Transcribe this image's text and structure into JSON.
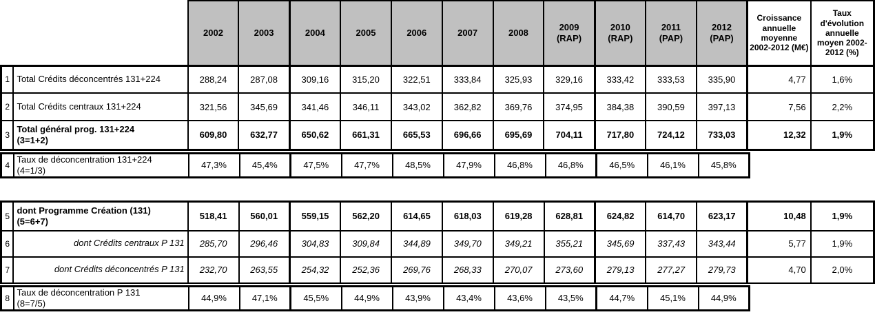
{
  "page": {
    "background": "#ffffff",
    "border_color": "#000000",
    "header_bg": "#c0c0c0",
    "text_color": "#000000"
  },
  "header": {
    "years": [
      "2002",
      "2003",
      "2004",
      "2005",
      "2006",
      "2007",
      "2008",
      "2009\n(RAP)",
      "2010\n(RAP)",
      "2011\n(PAP)",
      "2012\n(PAP)"
    ],
    "avg_label": "Croissance annuelle moyenne 2002-2012 (M€)",
    "rate_label": "Taux d'évolution annuelle moyen 2002-2012 (%)"
  },
  "rows": [
    {
      "num": "1",
      "label": "Total Crédits déconcentrés 131+224",
      "sub": "",
      "values": [
        "288,24",
        "287,08",
        "309,16",
        "315,20",
        "322,51",
        "333,84",
        "325,93",
        "329,16",
        "333,42",
        "333,53",
        "335,90"
      ],
      "avg": "4,77",
      "rate": "1,6%",
      "style": "normal"
    },
    {
      "num": "2",
      "label": "Total Crédits centraux 131+224",
      "sub": "",
      "values": [
        "321,56",
        "345,69",
        "341,46",
        "346,11",
        "343,02",
        "362,82",
        "369,76",
        "374,95",
        "384,38",
        "390,59",
        "397,13"
      ],
      "avg": "7,56",
      "rate": "2,2%",
      "style": "normal"
    },
    {
      "num": "3",
      "label": "Total général prog. 131+224",
      "sub": "(3=1+2)",
      "values": [
        "609,80",
        "632,77",
        "650,62",
        "661,31",
        "665,53",
        "696,66",
        "695,69",
        "704,11",
        "717,80",
        "724,12",
        "733,03"
      ],
      "avg": "12,32",
      "rate": "1,9%",
      "style": "bold"
    },
    {
      "num": "4",
      "label": "Taux de déconcentration 131+224",
      "sub": "(4=1/3)",
      "values": [
        "47,3%",
        "45,4%",
        "47,5%",
        "47,7%",
        "48,5%",
        "47,9%",
        "46,8%",
        "46,8%",
        "46,5%",
        "46,1%",
        "45,8%"
      ],
      "avg": "",
      "rate": "",
      "style": "normal"
    },
    {
      "num": "5",
      "label": "dont Programme Création (131)",
      "sub": "(5=6+7)",
      "values": [
        "518,41",
        "560,01",
        "559,15",
        "562,20",
        "614,65",
        "618,03",
        "619,28",
        "628,81",
        "624,82",
        "614,70",
        "623,17"
      ],
      "avg": "10,48",
      "rate": "1,9%",
      "style": "bold"
    },
    {
      "num": "6",
      "label": "dont Crédits centraux P 131",
      "sub": "",
      "values": [
        "285,70",
        "296,46",
        "304,83",
        "309,84",
        "344,89",
        "349,70",
        "349,21",
        "355,21",
        "345,69",
        "337,43",
        "343,44"
      ],
      "avg": "5,77",
      "rate": "1,9%",
      "style": "italic"
    },
    {
      "num": "7",
      "label": "dont Crédits déconcentrés P 131",
      "sub": "",
      "values": [
        "232,70",
        "263,55",
        "254,32",
        "252,36",
        "269,76",
        "268,33",
        "270,07",
        "273,60",
        "279,13",
        "277,27",
        "279,73"
      ],
      "avg": "4,70",
      "rate": "2,0%",
      "style": "italic"
    },
    {
      "num": "8",
      "label": "Taux de déconcentration P 131",
      "sub": "(8=7/5)",
      "values": [
        "44,9%",
        "47,1%",
        "45,5%",
        "44,9%",
        "43,9%",
        "43,4%",
        "43,6%",
        "43,5%",
        "44,7%",
        "45,1%",
        "44,9%"
      ],
      "avg": "",
      "rate": "",
      "style": "normal"
    }
  ]
}
